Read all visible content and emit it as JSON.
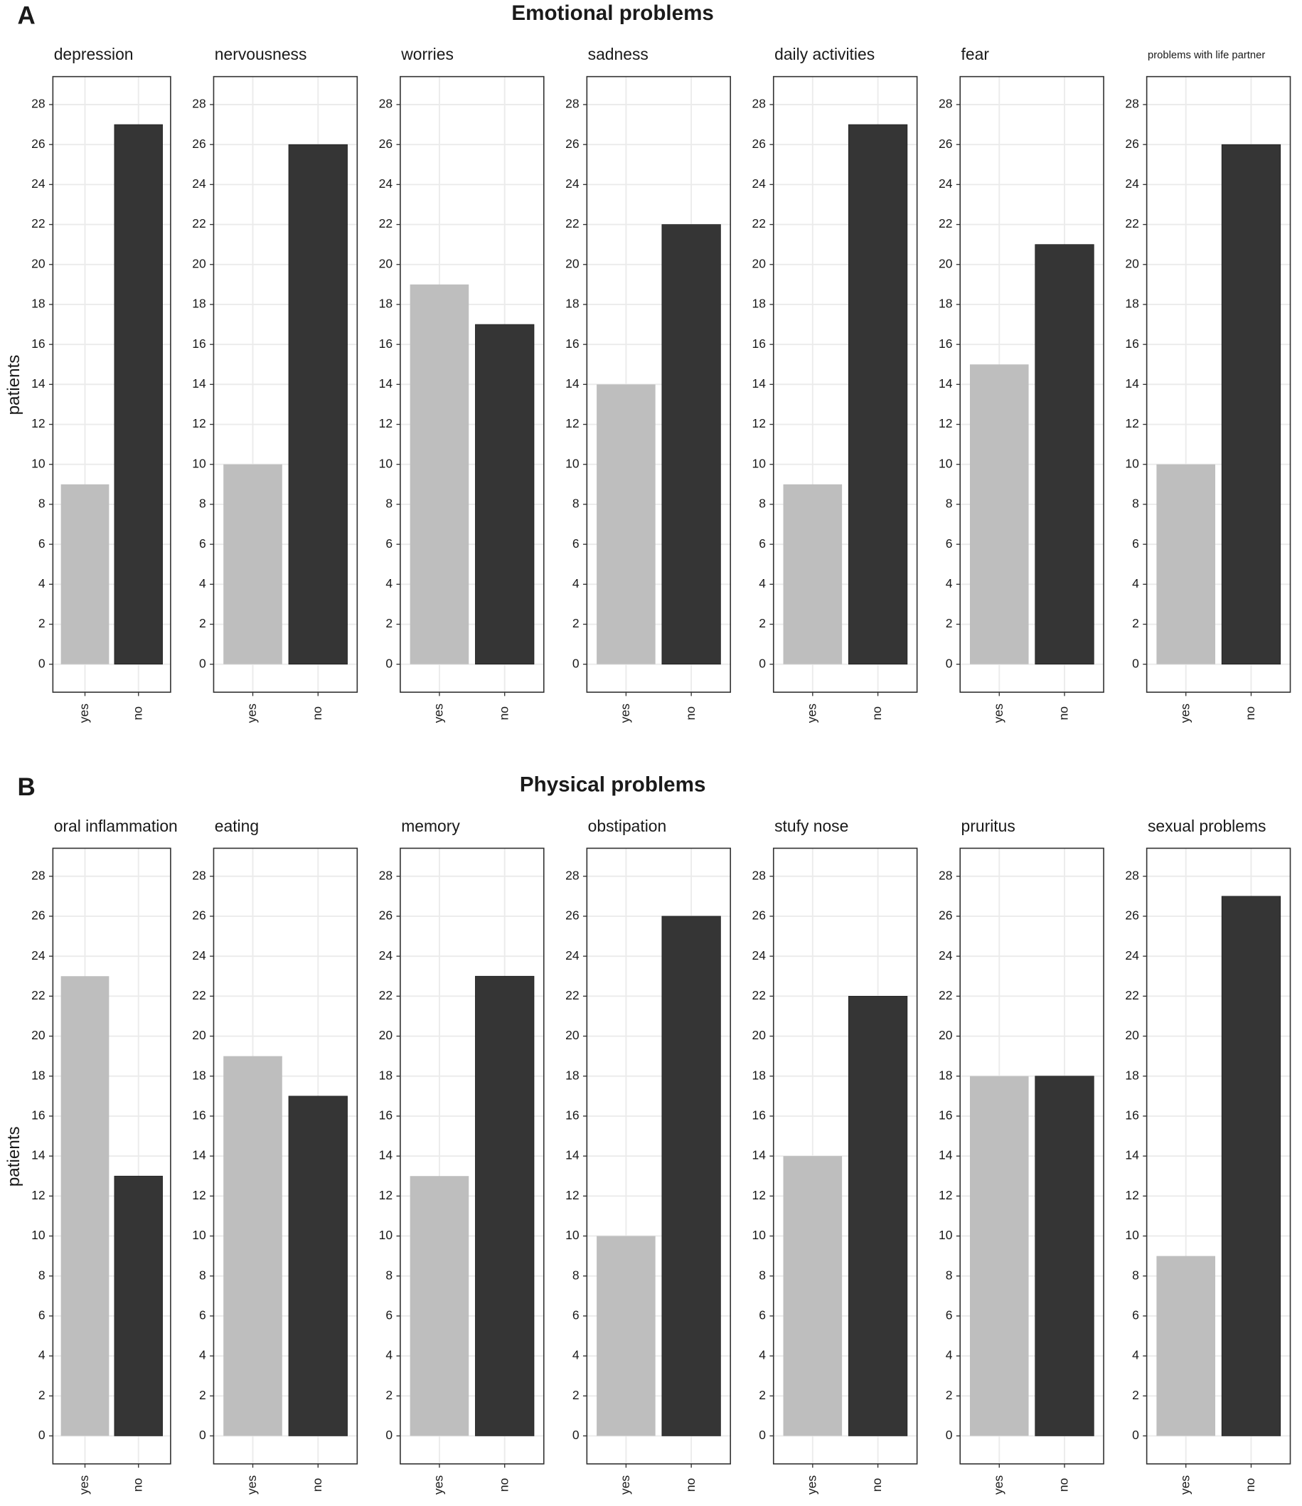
{
  "panels": [
    {
      "label": "A",
      "title": "Emotional problems",
      "y_label": "patients"
    },
    {
      "label": "B",
      "title": "Physical problems",
      "y_label": "patients"
    }
  ],
  "chart_data": [
    {
      "type": "bar",
      "title": "depression",
      "categories": [
        "yes",
        "no"
      ],
      "values": [
        9,
        27
      ],
      "colors": [
        "#bebebe",
        "#353535"
      ],
      "ylim": [
        -1.4,
        29.4
      ],
      "yticks": [
        0,
        2,
        4,
        6,
        8,
        10,
        12,
        14,
        16,
        18,
        20,
        22,
        24,
        26,
        28
      ],
      "grid": true
    },
    {
      "type": "bar",
      "title": "nervousness",
      "categories": [
        "yes",
        "no"
      ],
      "values": [
        10,
        26
      ],
      "colors": [
        "#bebebe",
        "#353535"
      ],
      "ylim": [
        -1.4,
        29.4
      ],
      "yticks": [
        0,
        2,
        4,
        6,
        8,
        10,
        12,
        14,
        16,
        18,
        20,
        22,
        24,
        26,
        28
      ],
      "grid": true
    },
    {
      "type": "bar",
      "title": "worries",
      "categories": [
        "yes",
        "no"
      ],
      "values": [
        19,
        17
      ],
      "colors": [
        "#bebebe",
        "#353535"
      ],
      "ylim": [
        -1.4,
        29.4
      ],
      "yticks": [
        0,
        2,
        4,
        6,
        8,
        10,
        12,
        14,
        16,
        18,
        20,
        22,
        24,
        26,
        28
      ],
      "grid": true
    },
    {
      "type": "bar",
      "title": "sadness",
      "categories": [
        "yes",
        "no"
      ],
      "values": [
        14,
        22
      ],
      "colors": [
        "#bebebe",
        "#353535"
      ],
      "ylim": [
        -1.4,
        29.4
      ],
      "yticks": [
        0,
        2,
        4,
        6,
        8,
        10,
        12,
        14,
        16,
        18,
        20,
        22,
        24,
        26,
        28
      ],
      "grid": true
    },
    {
      "type": "bar",
      "title": "daily activities",
      "categories": [
        "yes",
        "no"
      ],
      "values": [
        9,
        27
      ],
      "colors": [
        "#bebebe",
        "#353535"
      ],
      "ylim": [
        -1.4,
        29.4
      ],
      "yticks": [
        0,
        2,
        4,
        6,
        8,
        10,
        12,
        14,
        16,
        18,
        20,
        22,
        24,
        26,
        28
      ],
      "grid": true
    },
    {
      "type": "bar",
      "title": "fear",
      "categories": [
        "yes",
        "no"
      ],
      "values": [
        15,
        21
      ],
      "colors": [
        "#bebebe",
        "#353535"
      ],
      "ylim": [
        -1.4,
        29.4
      ],
      "yticks": [
        0,
        2,
        4,
        6,
        8,
        10,
        12,
        14,
        16,
        18,
        20,
        22,
        24,
        26,
        28
      ],
      "grid": true
    },
    {
      "type": "bar",
      "title": "problems with life partner",
      "categories": [
        "yes",
        "no"
      ],
      "values": [
        10,
        26
      ],
      "colors": [
        "#bebebe",
        "#353535"
      ],
      "ylim": [
        -1.4,
        29.4
      ],
      "yticks": [
        0,
        2,
        4,
        6,
        8,
        10,
        12,
        14,
        16,
        18,
        20,
        22,
        24,
        26,
        28
      ],
      "grid": true
    },
    {
      "type": "bar",
      "title": "oral inflammation",
      "categories": [
        "yes",
        "no"
      ],
      "values": [
        23,
        13
      ],
      "colors": [
        "#bebebe",
        "#353535"
      ],
      "ylim": [
        -1.4,
        29.4
      ],
      "yticks": [
        0,
        2,
        4,
        6,
        8,
        10,
        12,
        14,
        16,
        18,
        20,
        22,
        24,
        26,
        28
      ],
      "grid": true
    },
    {
      "type": "bar",
      "title": "eating",
      "categories": [
        "yes",
        "no"
      ],
      "values": [
        19,
        17
      ],
      "colors": [
        "#bebebe",
        "#353535"
      ],
      "ylim": [
        -1.4,
        29.4
      ],
      "yticks": [
        0,
        2,
        4,
        6,
        8,
        10,
        12,
        14,
        16,
        18,
        20,
        22,
        24,
        26,
        28
      ],
      "grid": true
    },
    {
      "type": "bar",
      "title": "memory",
      "categories": [
        "yes",
        "no"
      ],
      "values": [
        13,
        23
      ],
      "colors": [
        "#bebebe",
        "#353535"
      ],
      "ylim": [
        -1.4,
        29.4
      ],
      "yticks": [
        0,
        2,
        4,
        6,
        8,
        10,
        12,
        14,
        16,
        18,
        20,
        22,
        24,
        26,
        28
      ],
      "grid": true
    },
    {
      "type": "bar",
      "title": "obstipation",
      "categories": [
        "yes",
        "no"
      ],
      "values": [
        10,
        26
      ],
      "colors": [
        "#bebebe",
        "#353535"
      ],
      "ylim": [
        -1.4,
        29.4
      ],
      "yticks": [
        0,
        2,
        4,
        6,
        8,
        10,
        12,
        14,
        16,
        18,
        20,
        22,
        24,
        26,
        28
      ],
      "grid": true
    },
    {
      "type": "bar",
      "title": "stufy nose",
      "categories": [
        "yes",
        "no"
      ],
      "values": [
        14,
        22
      ],
      "colors": [
        "#bebebe",
        "#353535"
      ],
      "ylim": [
        -1.4,
        29.4
      ],
      "yticks": [
        0,
        2,
        4,
        6,
        8,
        10,
        12,
        14,
        16,
        18,
        20,
        22,
        24,
        26,
        28
      ],
      "grid": true
    },
    {
      "type": "bar",
      "title": "pruritus",
      "categories": [
        "yes",
        "no"
      ],
      "values": [
        18,
        18
      ],
      "colors": [
        "#bebebe",
        "#353535"
      ],
      "ylim": [
        -1.4,
        29.4
      ],
      "yticks": [
        0,
        2,
        4,
        6,
        8,
        10,
        12,
        14,
        16,
        18,
        20,
        22,
        24,
        26,
        28
      ],
      "grid": true
    },
    {
      "type": "bar",
      "title": "sexual problems",
      "categories": [
        "yes",
        "no"
      ],
      "values": [
        9,
        27
      ],
      "colors": [
        "#bebebe",
        "#353535"
      ],
      "ylim": [
        -1.4,
        29.4
      ],
      "yticks": [
        0,
        2,
        4,
        6,
        8,
        10,
        12,
        14,
        16,
        18,
        20,
        22,
        24,
        26,
        28
      ],
      "grid": true
    }
  ]
}
